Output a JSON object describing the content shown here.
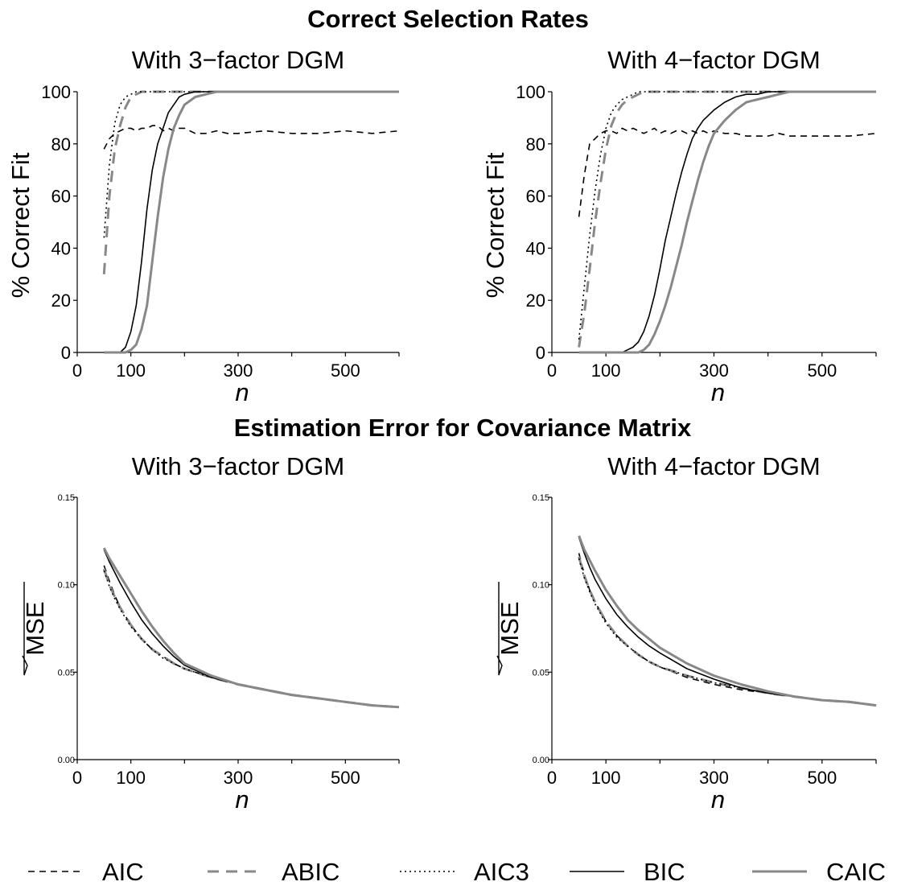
{
  "sections": [
    {
      "title": "Correct Selection Rates"
    },
    {
      "title": "Estimation Error for Covariance Matrix"
    }
  ],
  "legend": {
    "placement": "bottom",
    "entries": [
      {
        "name": "AIC",
        "color": "#000000",
        "dash": "dashed",
        "width": "thin"
      },
      {
        "name": "ABIC",
        "color": "#888888",
        "dash": "dashed",
        "width": "thick"
      },
      {
        "name": "AIC3",
        "color": "#000000",
        "dash": "dotted",
        "width": "thin"
      },
      {
        "name": "BIC",
        "color": "#000000",
        "dash": "solid",
        "width": "thin"
      },
      {
        "name": "CAIC",
        "color": "#888888",
        "dash": "solid",
        "width": "thick"
      }
    ]
  },
  "chart_data": [
    {
      "type": "line",
      "title": "With 3−factor DGM",
      "xlabel": "n",
      "ylabel": "% Correct Fit",
      "xlim": [
        0,
        600
      ],
      "ylim": [
        0,
        100
      ],
      "xticks": [
        "0",
        "100",
        "300",
        "500"
      ],
      "yticks": [
        "0",
        "20",
        "40",
        "60",
        "80",
        "100"
      ],
      "x": [
        50,
        60,
        70,
        80,
        90,
        100,
        110,
        120,
        130,
        140,
        150,
        160,
        170,
        180,
        190,
        200,
        220,
        240,
        260,
        280,
        300,
        350,
        400,
        450,
        500,
        550,
        600
      ],
      "series": [
        {
          "name": "AIC",
          "values": [
            78,
            82,
            84,
            85,
            86,
            86,
            85,
            86,
            86,
            87,
            87,
            85,
            86,
            85,
            86,
            86,
            84,
            84,
            85,
            84,
            84,
            85,
            84,
            84,
            85,
            84,
            85
          ]
        },
        {
          "name": "ABIC",
          "values": [
            30,
            60,
            78,
            87,
            94,
            98,
            99,
            100,
            100,
            100,
            100,
            100,
            100,
            100,
            100,
            100,
            100,
            100,
            100,
            100,
            100,
            100,
            100,
            100,
            100,
            100,
            100
          ]
        },
        {
          "name": "AIC3",
          "values": [
            44,
            72,
            88,
            95,
            98,
            99,
            100,
            100,
            100,
            100,
            100,
            100,
            100,
            100,
            100,
            100,
            100,
            100,
            100,
            100,
            100,
            100,
            100,
            100,
            100,
            100,
            100
          ]
        },
        {
          "name": "BIC",
          "values": [
            0,
            0,
            0,
            0,
            2,
            8,
            18,
            35,
            55,
            70,
            80,
            86,
            92,
            95,
            98,
            99,
            100,
            100,
            100,
            100,
            100,
            100,
            100,
            100,
            100,
            100,
            100
          ]
        },
        {
          "name": "CAIC",
          "values": [
            0,
            0,
            0,
            0,
            0,
            1,
            3,
            9,
            18,
            35,
            52,
            67,
            78,
            86,
            91,
            95,
            98,
            99,
            100,
            100,
            100,
            100,
            100,
            100,
            100,
            100,
            100
          ]
        }
      ]
    },
    {
      "type": "line",
      "title": "With 4−factor DGM",
      "xlabel": "n",
      "ylabel": "% Correct Fit",
      "xlim": [
        0,
        600
      ],
      "ylim": [
        0,
        100
      ],
      "xticks": [
        "0",
        "100",
        "300",
        "500"
      ],
      "yticks": [
        "0",
        "20",
        "40",
        "60",
        "80",
        "100"
      ],
      "x": [
        50,
        60,
        70,
        80,
        90,
        100,
        110,
        120,
        130,
        140,
        150,
        160,
        170,
        180,
        190,
        200,
        210,
        220,
        230,
        240,
        250,
        260,
        270,
        280,
        290,
        300,
        320,
        340,
        360,
        380,
        400,
        420,
        440,
        460,
        500,
        550,
        600
      ],
      "series": [
        {
          "name": "AIC",
          "values": [
            52,
            68,
            80,
            82,
            84,
            85,
            85,
            84,
            86,
            85,
            86,
            85,
            84,
            85,
            86,
            84,
            85,
            84,
            85,
            85,
            84,
            85,
            84,
            85,
            84,
            85,
            84,
            84,
            83,
            83,
            83,
            84,
            83,
            83,
            83,
            83,
            84
          ]
        },
        {
          "name": "ABIC",
          "values": [
            2,
            15,
            32,
            50,
            65,
            78,
            87,
            92,
            95,
            97,
            98,
            99,
            100,
            100,
            100,
            100,
            100,
            100,
            100,
            100,
            100,
            100,
            100,
            100,
            100,
            100,
            100,
            100,
            100,
            100,
            100,
            100,
            100,
            100,
            100,
            100,
            100
          ]
        },
        {
          "name": "AIC3",
          "values": [
            5,
            25,
            45,
            62,
            76,
            86,
            92,
            95,
            97,
            98,
            99,
            100,
            100,
            100,
            100,
            100,
            100,
            100,
            100,
            100,
            100,
            100,
            100,
            100,
            100,
            100,
            100,
            100,
            100,
            100,
            100,
            100,
            100,
            100,
            100,
            100,
            100
          ]
        },
        {
          "name": "BIC",
          "values": [
            0,
            0,
            0,
            0,
            0,
            0,
            0,
            0,
            0,
            1,
            2,
            4,
            8,
            14,
            22,
            32,
            43,
            52,
            61,
            69,
            76,
            82,
            86,
            89,
            91,
            93,
            96,
            98,
            99,
            99,
            100,
            100,
            100,
            100,
            100,
            100,
            100
          ]
        },
        {
          "name": "CAIC",
          "values": [
            0,
            0,
            0,
            0,
            0,
            0,
            0,
            0,
            0,
            0,
            0,
            0,
            1,
            3,
            7,
            12,
            18,
            25,
            33,
            41,
            50,
            58,
            66,
            73,
            79,
            84,
            89,
            93,
            96,
            97,
            98,
            99,
            100,
            100,
            100,
            100,
            100
          ]
        }
      ]
    },
    {
      "type": "line",
      "title": "With 3−factor DGM",
      "xlabel": "n",
      "ylabel": "MSE",
      "xlim": [
        0,
        600
      ],
      "ylim": [
        0,
        0.15
      ],
      "xticks": [
        "0",
        "100",
        "300",
        "500"
      ],
      "yticks": [
        "0.00",
        "0.05",
        "0.10",
        "0.15"
      ],
      "x": [
        50,
        60,
        70,
        80,
        100,
        120,
        140,
        160,
        180,
        200,
        250,
        300,
        350,
        400,
        450,
        500,
        550,
        600
      ],
      "series": [
        {
          "name": "AIC",
          "values": [
            0.111,
            0.102,
            0.094,
            0.087,
            0.077,
            0.069,
            0.063,
            0.059,
            0.055,
            0.052,
            0.047,
            0.043,
            0.04,
            0.037,
            0.035,
            0.033,
            0.031,
            0.03
          ]
        },
        {
          "name": "ABIC",
          "values": [
            0.109,
            0.1,
            0.093,
            0.087,
            0.077,
            0.069,
            0.063,
            0.059,
            0.055,
            0.052,
            0.047,
            0.043,
            0.04,
            0.037,
            0.035,
            0.033,
            0.031,
            0.03
          ]
        },
        {
          "name": "AIC3",
          "values": [
            0.108,
            0.099,
            0.092,
            0.086,
            0.076,
            0.069,
            0.063,
            0.058,
            0.055,
            0.052,
            0.047,
            0.043,
            0.04,
            0.037,
            0.035,
            0.033,
            0.031,
            0.03
          ]
        },
        {
          "name": "BIC",
          "values": [
            0.12,
            0.113,
            0.107,
            0.101,
            0.09,
            0.08,
            0.072,
            0.065,
            0.059,
            0.054,
            0.047,
            0.043,
            0.04,
            0.037,
            0.035,
            0.033,
            0.031,
            0.03
          ]
        },
        {
          "name": "CAIC",
          "values": [
            0.121,
            0.115,
            0.11,
            0.105,
            0.095,
            0.085,
            0.076,
            0.068,
            0.061,
            0.055,
            0.048,
            0.043,
            0.04,
            0.037,
            0.035,
            0.033,
            0.031,
            0.03
          ]
        }
      ]
    },
    {
      "type": "line",
      "title": "With 4−factor DGM",
      "xlabel": "n",
      "ylabel": "MSE",
      "xlim": [
        0,
        600
      ],
      "ylim": [
        0,
        0.15
      ],
      "xticks": [
        "0",
        "100",
        "300",
        "500"
      ],
      "yticks": [
        "0.00",
        "0.05",
        "0.10",
        "0.15"
      ],
      "x": [
        50,
        60,
        70,
        80,
        100,
        120,
        140,
        160,
        180,
        200,
        250,
        300,
        350,
        400,
        450,
        500,
        550,
        600
      ],
      "series": [
        {
          "name": "AIC",
          "values": [
            0.118,
            0.106,
            0.097,
            0.09,
            0.079,
            0.071,
            0.065,
            0.06,
            0.056,
            0.053,
            0.047,
            0.043,
            0.04,
            0.038,
            0.036,
            0.034,
            0.033,
            0.031
          ]
        },
        {
          "name": "ABIC",
          "values": [
            0.116,
            0.105,
            0.097,
            0.09,
            0.079,
            0.071,
            0.065,
            0.06,
            0.056,
            0.053,
            0.048,
            0.044,
            0.041,
            0.038,
            0.036,
            0.034,
            0.033,
            0.031
          ]
        },
        {
          "name": "AIC3",
          "values": [
            0.115,
            0.104,
            0.096,
            0.089,
            0.078,
            0.07,
            0.065,
            0.06,
            0.056,
            0.053,
            0.048,
            0.044,
            0.041,
            0.038,
            0.036,
            0.034,
            0.033,
            0.031
          ]
        },
        {
          "name": "BIC",
          "values": [
            0.127,
            0.118,
            0.11,
            0.103,
            0.092,
            0.083,
            0.076,
            0.07,
            0.065,
            0.061,
            0.052,
            0.046,
            0.041,
            0.038,
            0.036,
            0.034,
            0.033,
            0.031
          ]
        },
        {
          "name": "CAIC",
          "values": [
            0.128,
            0.12,
            0.114,
            0.108,
            0.097,
            0.088,
            0.08,
            0.074,
            0.069,
            0.064,
            0.055,
            0.048,
            0.043,
            0.039,
            0.036,
            0.034,
            0.033,
            0.031
          ]
        }
      ]
    }
  ]
}
